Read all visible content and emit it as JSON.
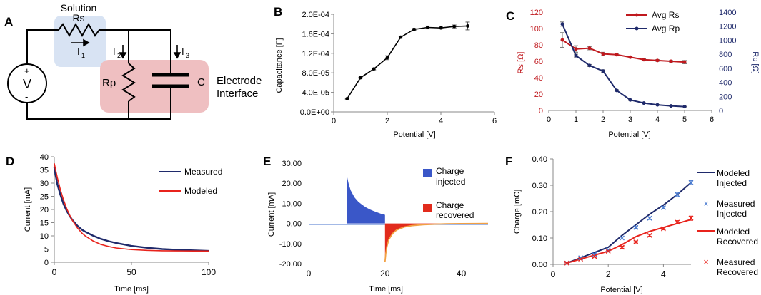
{
  "panel_letters": [
    "A",
    "B",
    "C",
    "D",
    "E",
    "F"
  ],
  "colors": {
    "dark_blue": "#1f2a6b",
    "red": "#c0191e",
    "bright_red": "#e8231c",
    "inj_blue": "#3a57c8",
    "rec_red": "#e22b1c",
    "orange": "#f2a043",
    "sol_bg": "#d8e3f3",
    "if_bg": "#efbfc1",
    "axis": "#888888"
  },
  "circuit": {
    "solution_label": "Solution",
    "rs_label": "Rs",
    "i1_label": "I",
    "i1_sub": "1",
    "i2_label": "I",
    "i2_sub": "2",
    "i3_label": "I",
    "i3_sub": "3",
    "v_label": "V",
    "plus": "+",
    "minus": "-",
    "rp_label": "Rp",
    "c_label": "C",
    "interface_line1": "Electrode",
    "interface_line2": "Interface"
  },
  "chart_data": [
    {
      "id": "B",
      "type": "line",
      "xlabel": "Potential [V]",
      "ylabel": "Capacitance [F]",
      "xlim": [
        0,
        6
      ],
      "ylim": [
        0,
        0.0002
      ],
      "xticks": [
        "0",
        "2",
        "4",
        "6"
      ],
      "yticks": [
        "0.0E+00",
        "4.0E-05",
        "8.0E-05",
        "1.2E-04",
        "1.6E-04",
        "2.0E-04"
      ],
      "series": [
        {
          "name": "Capacitance",
          "x": [
            0.5,
            1,
            1.5,
            2,
            2.5,
            3,
            3.5,
            4,
            4.5,
            5
          ],
          "y": [
            2.7e-05,
            7e-05,
            8.8e-05,
            0.000111,
            0.000153,
            0.000169,
            0.000173,
            0.000172,
            0.000175,
            0.000176
          ],
          "err": [
            1e-06,
            1e-06,
            2e-06,
            4e-06,
            2e-06,
            2e-06,
            3e-06,
            2e-06,
            3e-06,
            8e-06
          ]
        }
      ]
    },
    {
      "id": "C",
      "type": "line",
      "xlabel": "Potential [V]",
      "ylabel_left": "Rs [Ω]",
      "ylabel_right": "Rp [Ω]",
      "xlim": [
        0,
        6
      ],
      "ylim_left": [
        0,
        120
      ],
      "ylim_right": [
        0,
        1400
      ],
      "xticks": [
        "0",
        "1",
        "2",
        "3",
        "4",
        "5",
        "6"
      ],
      "yticks_left": [
        "0",
        "20",
        "40",
        "60",
        "80",
        "100",
        "120"
      ],
      "yticks_right": [
        "0",
        "200",
        "400",
        "600",
        "800",
        "1000",
        "1200",
        "1400"
      ],
      "legend": "top-right",
      "series": [
        {
          "name": "Avg Rs",
          "axis": "left",
          "x": [
            0.5,
            1,
            1.5,
            2,
            2.5,
            3,
            3.5,
            4,
            4.5,
            5
          ],
          "y": [
            86,
            75,
            76,
            69,
            68,
            65,
            62,
            61,
            60,
            59
          ],
          "err": [
            9,
            4,
            2,
            2,
            1.5,
            1,
            1,
            1,
            1,
            2
          ]
        },
        {
          "name": "Avg Rp",
          "axis": "right",
          "x": [
            0.5,
            1,
            1.5,
            2,
            2.5,
            3,
            3.5,
            4,
            4.5,
            5
          ],
          "y": [
            1230,
            780,
            640,
            560,
            285,
            150,
            105,
            80,
            65,
            55
          ],
          "err": [
            30,
            20,
            15,
            20,
            10,
            8,
            5,
            5,
            5,
            5
          ]
        }
      ]
    },
    {
      "id": "D",
      "type": "line",
      "xlabel": "Time [ms]",
      "ylabel": "Current [mA]",
      "xlim": [
        0,
        100
      ],
      "ylim": [
        0,
        40
      ],
      "xticks": [
        "0",
        "50",
        "100"
      ],
      "yticks": [
        "0",
        "5",
        "10",
        "15",
        "20",
        "25",
        "30",
        "35",
        "40"
      ],
      "legend": "top-right",
      "series": [
        {
          "name": "Measured",
          "x": [
            0,
            1,
            2,
            4,
            6,
            8,
            10,
            12,
            15,
            18,
            20,
            25,
            30,
            35,
            40,
            50,
            60,
            70,
            80,
            90,
            100
          ],
          "y": [
            36,
            32.5,
            29.5,
            25.5,
            22,
            19.5,
            17.5,
            15.8,
            13.8,
            12.3,
            11.6,
            10.1,
            8.9,
            8,
            7.3,
            6.2,
            5.5,
            5,
            4.7,
            4.5,
            4.3
          ]
        },
        {
          "name": "Modeled",
          "x": [
            0,
            1,
            2,
            4,
            6,
            8,
            10,
            12,
            15,
            18,
            20,
            25,
            30,
            35,
            40,
            50,
            60,
            70,
            80,
            90,
            100
          ],
          "y": [
            37.5,
            34.6,
            32,
            27.4,
            23.6,
            20.4,
            17.8,
            15.6,
            13,
            11,
            10,
            8.1,
            6.8,
            6,
            5.4,
            4.8,
            4.5,
            4.35,
            4.3,
            4.27,
            4.25
          ]
        }
      ]
    },
    {
      "id": "E",
      "type": "area",
      "xlabel": "Time [ms]",
      "ylabel": "Current [mA]",
      "xlim": [
        0,
        47
      ],
      "ylim": [
        -20,
        30
      ],
      "xticks": [
        "0",
        "20",
        "40"
      ],
      "yticks": [
        "-20.00",
        "-10.00",
        "0.00",
        "10.00",
        "20.00",
        "30.00"
      ],
      "legend": "right",
      "series": [
        {
          "name": "Charge injected",
          "x": [
            10,
            10.2,
            10.5,
            11,
            12,
            13,
            14,
            15,
            16,
            17,
            18,
            19,
            20
          ],
          "y": [
            24,
            22,
            19.5,
            16.5,
            13,
            10.8,
            9.3,
            8,
            7,
            6.2,
            5.5,
            4.8,
            4.3
          ]
        },
        {
          "name": "Charge recovered",
          "x": [
            20,
            20.2,
            20.5,
            21,
            22,
            23,
            25,
            27,
            30,
            33,
            36,
            40,
            44,
            47
          ],
          "y": [
            -19,
            -15,
            -11.5,
            -8,
            -5,
            -3.3,
            -1.8,
            -1.1,
            -0.6,
            -0.35,
            -0.2,
            -0.1,
            -0.05,
            -0.03
          ]
        }
      ]
    },
    {
      "id": "F",
      "type": "line",
      "xlabel": "Potential [V]",
      "ylabel": "Charge [mC]",
      "xlim": [
        0,
        5
      ],
      "ylim": [
        0,
        0.4
      ],
      "xticks": [
        "0",
        "2",
        "4"
      ],
      "yticks": [
        "0.00",
        "0.10",
        "0.20",
        "0.30",
        "0.40"
      ],
      "legend": "right",
      "series": [
        {
          "name": "Modeled Injected",
          "kind": "line",
          "x": [
            0.5,
            1,
            1.5,
            2,
            2.5,
            3,
            3.5,
            4,
            4.5,
            5
          ],
          "y": [
            0.005,
            0.025,
            0.045,
            0.065,
            0.11,
            0.15,
            0.19,
            0.225,
            0.265,
            0.31
          ]
        },
        {
          "name": "Measured Injected",
          "kind": "marker",
          "x": [
            0.5,
            1,
            1.5,
            2,
            2.5,
            3,
            3.5,
            4,
            4.5,
            5
          ],
          "y": [
            0.005,
            0.025,
            0.038,
            0.055,
            0.1,
            0.14,
            0.175,
            0.215,
            0.265,
            0.31
          ],
          "err": [
            0.002,
            0.002,
            0.003,
            0.003,
            0.004,
            0.004,
            0.005,
            0.005,
            0.008,
            0.008
          ]
        },
        {
          "name": "Modeled Recovered",
          "kind": "line",
          "x": [
            0.5,
            1,
            1.5,
            2,
            2.5,
            3,
            3.5,
            4,
            4.5,
            5
          ],
          "y": [
            0.005,
            0.02,
            0.035,
            0.05,
            0.075,
            0.105,
            0.125,
            0.14,
            0.155,
            0.17
          ]
        },
        {
          "name": "Measured Recovered",
          "kind": "marker",
          "x": [
            0.5,
            1,
            1.5,
            2,
            2.5,
            3,
            3.5,
            4,
            4.5,
            5
          ],
          "y": [
            0.005,
            0.02,
            0.03,
            0.05,
            0.065,
            0.085,
            0.11,
            0.135,
            0.16,
            0.175
          ],
          "err": [
            0.002,
            0.002,
            0.003,
            0.003,
            0.004,
            0.004,
            0.004,
            0.004,
            0.006,
            0.008
          ]
        }
      ]
    }
  ]
}
